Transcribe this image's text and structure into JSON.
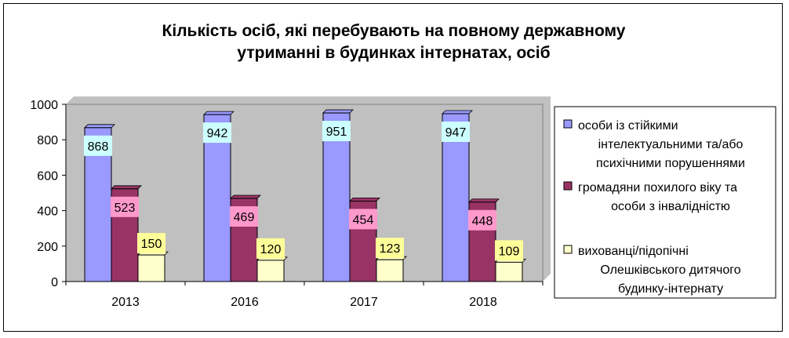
{
  "chart_data": {
    "type": "bar",
    "title_lines": [
      "Кількість осіб, які перебувають на повному державному",
      "утриманні в будинках інтернатах, осіб"
    ],
    "categories": [
      "2013",
      "2016",
      "2017",
      "2018"
    ],
    "ylim": [
      0,
      1000
    ],
    "yticks": [
      "0",
      "200",
      "400",
      "600",
      "800",
      "1000"
    ],
    "legend_position": "right",
    "grid": false,
    "series": [
      {
        "name_lines": [
          "особи із стійкими",
          "інтелектуальними та/або",
          "психічними порушеннями"
        ],
        "values": [
          868,
          942,
          951,
          947
        ],
        "labels": [
          "868",
          "942",
          "951",
          "947"
        ],
        "color": "#9999ff",
        "label_bg": "#ccffff"
      },
      {
        "name_lines": [
          "громадяни похилого віку та",
          "особи з інвалідністю"
        ],
        "values": [
          523,
          469,
          454,
          448
        ],
        "labels": [
          "523",
          "469",
          "454",
          "448"
        ],
        "color": "#993366",
        "label_bg": "#ff99cc"
      },
      {
        "name_lines": [
          "вихованці/підопічні",
          "Олешківського дитячого",
          "будинку-інтернату"
        ],
        "values": [
          150,
          120,
          123,
          109
        ],
        "labels": [
          "150",
          "120",
          "123",
          "109"
        ],
        "color": "#ffffcc",
        "label_bg": "#ffff99"
      }
    ]
  }
}
